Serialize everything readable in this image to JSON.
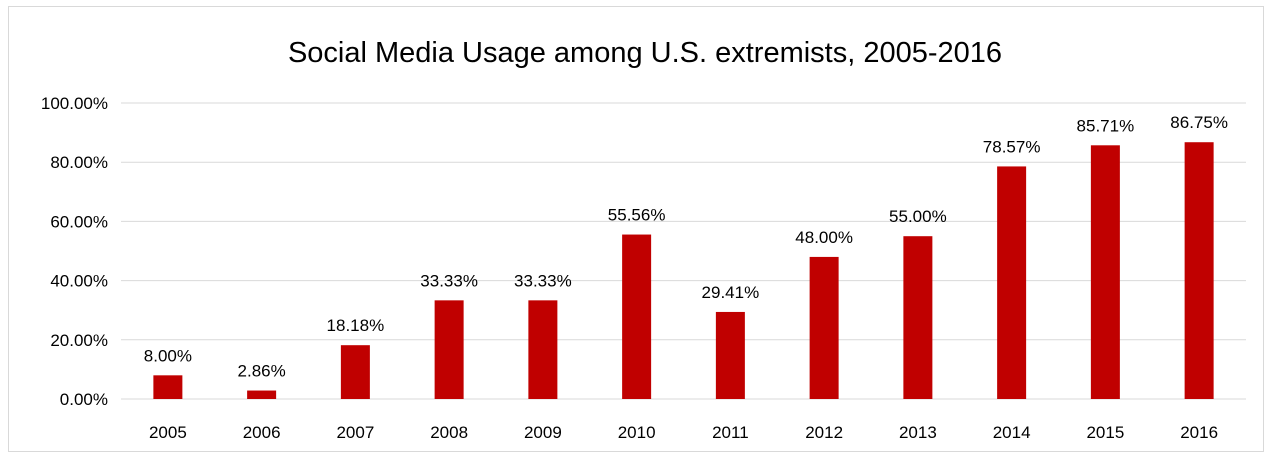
{
  "chart_data": {
    "type": "bar",
    "title": "Social Media Usage among U.S. extremists, 2005-2016",
    "xlabel": "",
    "ylabel": "",
    "categories": [
      "2005",
      "2006",
      "2007",
      "2008",
      "2009",
      "2010",
      "2011",
      "2012",
      "2013",
      "2014",
      "2015",
      "2016"
    ],
    "values": [
      8.0,
      2.86,
      18.18,
      33.33,
      33.33,
      55.56,
      29.41,
      48.0,
      55.0,
      78.57,
      85.71,
      86.75
    ],
    "data_labels": [
      "8.00%",
      "2.86%",
      "18.18%",
      "33.33%",
      "33.33%",
      "55.56%",
      "29.41%",
      "48.00%",
      "55.00%",
      "78.57%",
      "85.71%",
      "86.75%"
    ],
    "ylim": [
      0,
      100
    ],
    "y_ticks": [
      0,
      20,
      40,
      60,
      80,
      100
    ],
    "y_tick_labels": [
      "0.00%",
      "20.00%",
      "40.00%",
      "60.00%",
      "80.00%",
      "100.00%"
    ],
    "bar_color": "#c00000",
    "grid": true,
    "legend": "none"
  }
}
